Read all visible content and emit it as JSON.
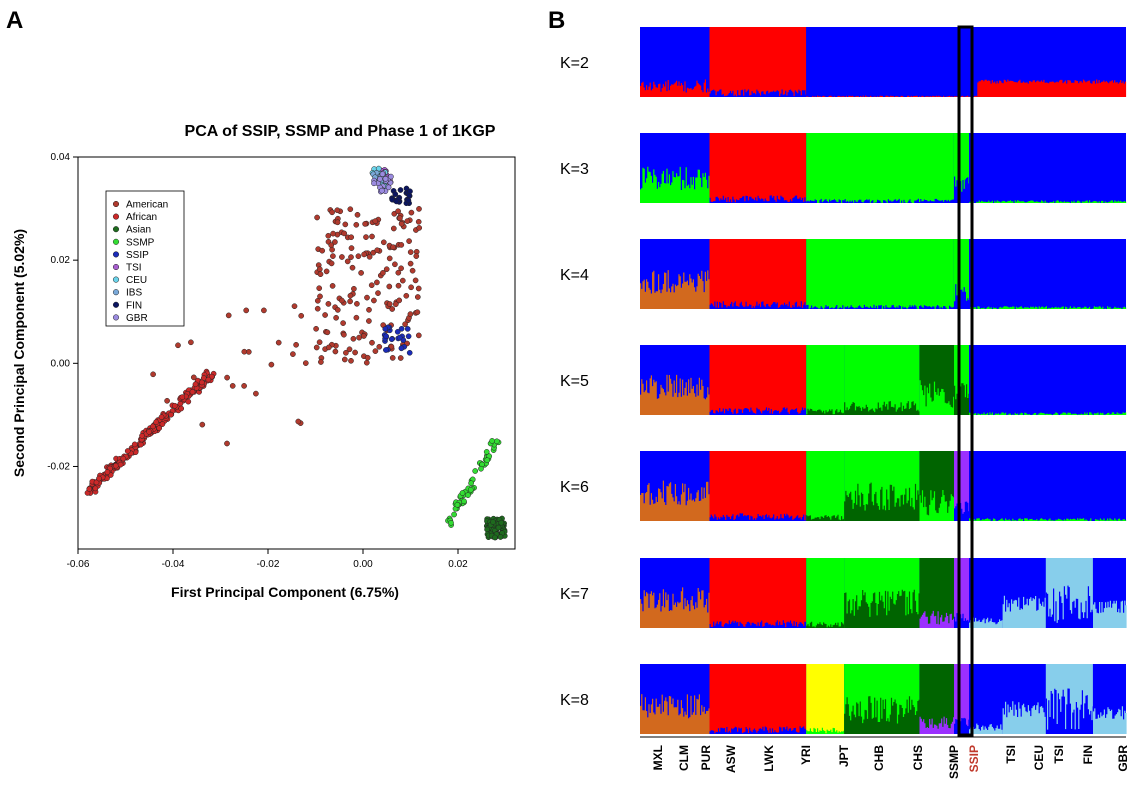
{
  "panels": {
    "a_letter": "A",
    "b_letter": "B"
  },
  "chart_data": [
    {
      "type": "scatter",
      "title": "PCA of SSIP, SSMP and Phase 1 of 1KGP",
      "xlabel": "First Principal Component  (6.75%)",
      "ylabel": "Second Principal Component  (5.02%)",
      "xlim": [
        -0.06,
        0.032
      ],
      "ylim": [
        -0.036,
        0.04
      ],
      "x_ticks": [
        -0.06,
        -0.04,
        -0.02,
        0.0,
        0.02
      ],
      "x_tick_labels": [
        "-0.06",
        "-0.04",
        "-0.02",
        "0.00",
        "0.02"
      ],
      "y_ticks": [
        -0.02,
        0.0,
        0.02,
        0.04
      ],
      "y_tick_labels": [
        "-0.02",
        "0.00",
        "0.02",
        "0.04"
      ],
      "grid": false,
      "legend_position": "top-left",
      "series": [
        {
          "name": "American",
          "color": "#b03a2e",
          "clusters": [
            {
              "x": [
                -0.045,
                -0.012
              ],
              "y": [
                -0.016,
                0.012
              ],
              "count": 28
            },
            {
              "x": [
                -0.01,
                0.012
              ],
              "y": [
                0.0,
                0.03
              ],
              "count": 180
            }
          ]
        },
        {
          "name": "African",
          "color": "#cc2929",
          "clusters": [
            {
              "x": [
                -0.058,
                -0.032
              ],
              "y": [
                -0.025,
                -0.002
              ],
              "count": 200,
              "line": true
            }
          ]
        },
        {
          "name": "Asian",
          "color": "#1e6b1e",
          "clusters": [
            {
              "x": [
                0.026,
                0.03
              ],
              "y": [
                -0.034,
                -0.03
              ],
              "count": 70
            }
          ]
        },
        {
          "name": "SSMP",
          "color": "#33dd33",
          "clusters": [
            {
              "x": [
                0.018,
                0.028
              ],
              "y": [
                -0.031,
                -0.015
              ],
              "count": 60,
              "line": true
            }
          ]
        },
        {
          "name": "SSIP",
          "color": "#1a2bb8",
          "clusters": [
            {
              "x": [
                0.004,
                0.01
              ],
              "y": [
                0.002,
                0.007
              ],
              "count": 25
            }
          ]
        },
        {
          "name": "TSI",
          "color": "#a85fd0",
          "clusters": [
            {
              "x": [
                0.003,
                0.006
              ],
              "y": [
                0.034,
                0.038
              ],
              "count": 20
            }
          ]
        },
        {
          "name": "CEU",
          "color": "#6ad3ea",
          "clusters": [
            {
              "x": [
                0.002,
                0.005
              ],
              "y": [
                0.034,
                0.038
              ],
              "count": 18
            }
          ]
        },
        {
          "name": "IBS",
          "color": "#7aa9d9",
          "clusters": [
            {
              "x": [
                0.002,
                0.004
              ],
              "y": [
                0.035,
                0.037
              ],
              "count": 8
            }
          ]
        },
        {
          "name": "FIN",
          "color": "#0b1560",
          "clusters": [
            {
              "x": [
                0.006,
                0.01
              ],
              "y": [
                0.031,
                0.034
              ],
              "count": 22
            }
          ]
        },
        {
          "name": "GBR",
          "color": "#9b8be0",
          "clusters": [
            {
              "x": [
                0.002,
                0.006
              ],
              "y": [
                0.033,
                0.037
              ],
              "count": 18
            }
          ]
        }
      ]
    },
    {
      "type": "bar",
      "subtype": "stacked-admixture",
      "k_labels": [
        "K=2",
        "K=3",
        "K=4",
        "K=5",
        "K=6",
        "K=7",
        "K=8"
      ],
      "populations": [
        "MXL",
        "CLM",
        "PUR",
        "ASW",
        "LWK",
        "YRI",
        "JPT",
        "CHB",
        "CHS",
        "SSMP",
        "SSIP",
        "TSI",
        "CEU",
        "TSI",
        "FIN",
        "GBR"
      ],
      "highlighted_population": "SSIP",
      "highlight_color": "#c0392b",
      "component_colors": {
        "blue": "#0000ff",
        "red": "#ff0000",
        "green": "#00ff00",
        "orange": "#d2691e",
        "darkgreen": "#006400",
        "purple": "#9b30ff",
        "lightblue": "#87ceeb",
        "yellow": "#ffff00"
      },
      "rows": [
        {
          "k": 2,
          "segments": [
            {
              "from": 0.0,
              "to": 0.143,
              "main": "blue",
              "second": "red",
              "frac": 0.15,
              "noise": 0.1
            },
            {
              "from": 0.143,
              "to": 0.342,
              "main": "red",
              "second": "blue",
              "frac": 0.06,
              "noise": 0.05
            },
            {
              "from": 0.342,
              "to": 0.694,
              "main": "blue",
              "second": "red",
              "frac": 0.01,
              "noise": 0.01
            },
            {
              "from": 0.694,
              "to": 1.0,
              "main": "blue",
              "second": "red",
              "frac": 0.22,
              "noise": 0.03
            }
          ]
        },
        {
          "k": 3,
          "segments": [
            {
              "from": 0.0,
              "to": 0.143,
              "main": "blue",
              "second": "green",
              "frac": 0.35,
              "noise": 0.18
            },
            {
              "from": 0.143,
              "to": 0.342,
              "main": "red",
              "second": "blue",
              "frac": 0.06,
              "noise": 0.05
            },
            {
              "from": 0.342,
              "to": 0.646,
              "main": "green",
              "second": "blue",
              "frac": 0.03,
              "noise": 0.03
            },
            {
              "from": 0.646,
              "to": 0.677,
              "main": "green",
              "second": "blue",
              "frac": 0.25,
              "noise": 0.15
            },
            {
              "from": 0.677,
              "to": 1.0,
              "main": "blue",
              "second": "green",
              "frac": 0.02,
              "noise": 0.02
            }
          ]
        },
        {
          "k": 4,
          "segments": [
            {
              "from": 0.0,
              "to": 0.143,
              "main": "blue",
              "second": "orange",
              "frac": 0.4,
              "noise": 0.18
            },
            {
              "from": 0.143,
              "to": 0.342,
              "main": "red",
              "second": "blue",
              "frac": 0.06,
              "noise": 0.05
            },
            {
              "from": 0.342,
              "to": 0.646,
              "main": "green",
              "second": "blue",
              "frac": 0.03,
              "noise": 0.03
            },
            {
              "from": 0.646,
              "to": 0.677,
              "main": "green",
              "second": "blue",
              "frac": 0.25,
              "noise": 0.15
            },
            {
              "from": 0.677,
              "to": 1.0,
              "main": "blue",
              "second": "green",
              "frac": 0.02,
              "noise": 0.02
            }
          ]
        },
        {
          "k": 5,
          "segments": [
            {
              "from": 0.0,
              "to": 0.143,
              "main": "blue",
              "second": "orange",
              "frac": 0.4,
              "noise": 0.18
            },
            {
              "from": 0.143,
              "to": 0.342,
              "main": "red",
              "second": "blue",
              "frac": 0.06,
              "noise": 0.05
            },
            {
              "from": 0.342,
              "to": 0.42,
              "main": "green",
              "second": "darkgreen",
              "frac": 0.05,
              "noise": 0.04
            },
            {
              "from": 0.42,
              "to": 0.575,
              "main": "green",
              "second": "darkgreen",
              "frac": 0.12,
              "noise": 0.08
            },
            {
              "from": 0.575,
              "to": 0.646,
              "main": "darkgreen",
              "second": "green",
              "frac": 0.3,
              "noise": 0.2
            },
            {
              "from": 0.646,
              "to": 0.677,
              "main": "green",
              "second": "darkgreen",
              "frac": 0.35,
              "noise": 0.15
            },
            {
              "from": 0.677,
              "to": 1.0,
              "main": "blue",
              "second": "green",
              "frac": 0.02,
              "noise": 0.02
            }
          ]
        },
        {
          "k": 6,
          "segments": [
            {
              "from": 0.0,
              "to": 0.143,
              "main": "blue",
              "second": "orange",
              "frac": 0.4,
              "noise": 0.18
            },
            {
              "from": 0.143,
              "to": 0.342,
              "main": "red",
              "second": "blue",
              "frac": 0.06,
              "noise": 0.05
            },
            {
              "from": 0.342,
              "to": 0.42,
              "main": "green",
              "second": "darkgreen",
              "frac": 0.05,
              "noise": 0.04
            },
            {
              "from": 0.42,
              "to": 0.575,
              "main": "green",
              "second": "darkgreen",
              "frac": 0.35,
              "noise": 0.2
            },
            {
              "from": 0.575,
              "to": 0.646,
              "main": "darkgreen",
              "second": "green",
              "frac": 0.25,
              "noise": 0.2
            },
            {
              "from": 0.646,
              "to": 0.677,
              "main": "purple",
              "second": "blue",
              "frac": 0.2,
              "noise": 0.1
            },
            {
              "from": 0.677,
              "to": 1.0,
              "main": "blue",
              "second": "green",
              "frac": 0.02,
              "noise": 0.02
            }
          ]
        },
        {
          "k": 7,
          "segments": [
            {
              "from": 0.0,
              "to": 0.143,
              "main": "blue",
              "second": "orange",
              "frac": 0.4,
              "noise": 0.18
            },
            {
              "from": 0.143,
              "to": 0.342,
              "main": "red",
              "second": "blue",
              "frac": 0.06,
              "noise": 0.05
            },
            {
              "from": 0.342,
              "to": 0.42,
              "main": "green",
              "second": "darkgreen",
              "frac": 0.05,
              "noise": 0.04
            },
            {
              "from": 0.42,
              "to": 0.575,
              "main": "green",
              "second": "darkgreen",
              "frac": 0.35,
              "noise": 0.2
            },
            {
              "from": 0.575,
              "to": 0.646,
              "main": "darkgreen",
              "second": "purple",
              "frac": 0.15,
              "noise": 0.1
            },
            {
              "from": 0.646,
              "to": 0.677,
              "main": "purple",
              "second": "blue",
              "frac": 0.15,
              "noise": 0.08
            },
            {
              "from": 0.677,
              "to": 0.746,
              "main": "blue",
              "second": "lightblue",
              "frac": 0.1,
              "noise": 0.05
            },
            {
              "from": 0.746,
              "to": 0.835,
              "main": "blue",
              "second": "lightblue",
              "frac": 0.35,
              "noise": 0.12
            },
            {
              "from": 0.835,
              "to": 0.932,
              "main": "lightblue",
              "second": "blue",
              "frac": 0.35,
              "noise": 0.3
            },
            {
              "from": 0.932,
              "to": 1.0,
              "main": "blue",
              "second": "lightblue",
              "frac": 0.3,
              "noise": 0.1
            }
          ]
        },
        {
          "k": 8,
          "segments": [
            {
              "from": 0.0,
              "to": 0.143,
              "main": "blue",
              "second": "orange",
              "frac": 0.4,
              "noise": 0.18
            },
            {
              "from": 0.143,
              "to": 0.342,
              "main": "red",
              "second": "blue",
              "frac": 0.06,
              "noise": 0.05
            },
            {
              "from": 0.342,
              "to": 0.42,
              "main": "yellow",
              "second": "green",
              "frac": 0.05,
              "noise": 0.04
            },
            {
              "from": 0.42,
              "to": 0.575,
              "main": "green",
              "second": "darkgreen",
              "frac": 0.35,
              "noise": 0.2
            },
            {
              "from": 0.575,
              "to": 0.646,
              "main": "darkgreen",
              "second": "purple",
              "frac": 0.15,
              "noise": 0.1
            },
            {
              "from": 0.646,
              "to": 0.677,
              "main": "purple",
              "second": "blue",
              "frac": 0.15,
              "noise": 0.08
            },
            {
              "from": 0.677,
              "to": 0.746,
              "main": "blue",
              "second": "lightblue",
              "frac": 0.1,
              "noise": 0.05
            },
            {
              "from": 0.746,
              "to": 0.835,
              "main": "blue",
              "second": "lightblue",
              "frac": 0.35,
              "noise": 0.12
            },
            {
              "from": 0.835,
              "to": 0.932,
              "main": "lightblue",
              "second": "blue",
              "frac": 0.35,
              "noise": 0.3
            },
            {
              "from": 0.932,
              "to": 1.0,
              "main": "blue",
              "second": "lightblue",
              "frac": 0.3,
              "noise": 0.1
            }
          ]
        }
      ]
    }
  ]
}
